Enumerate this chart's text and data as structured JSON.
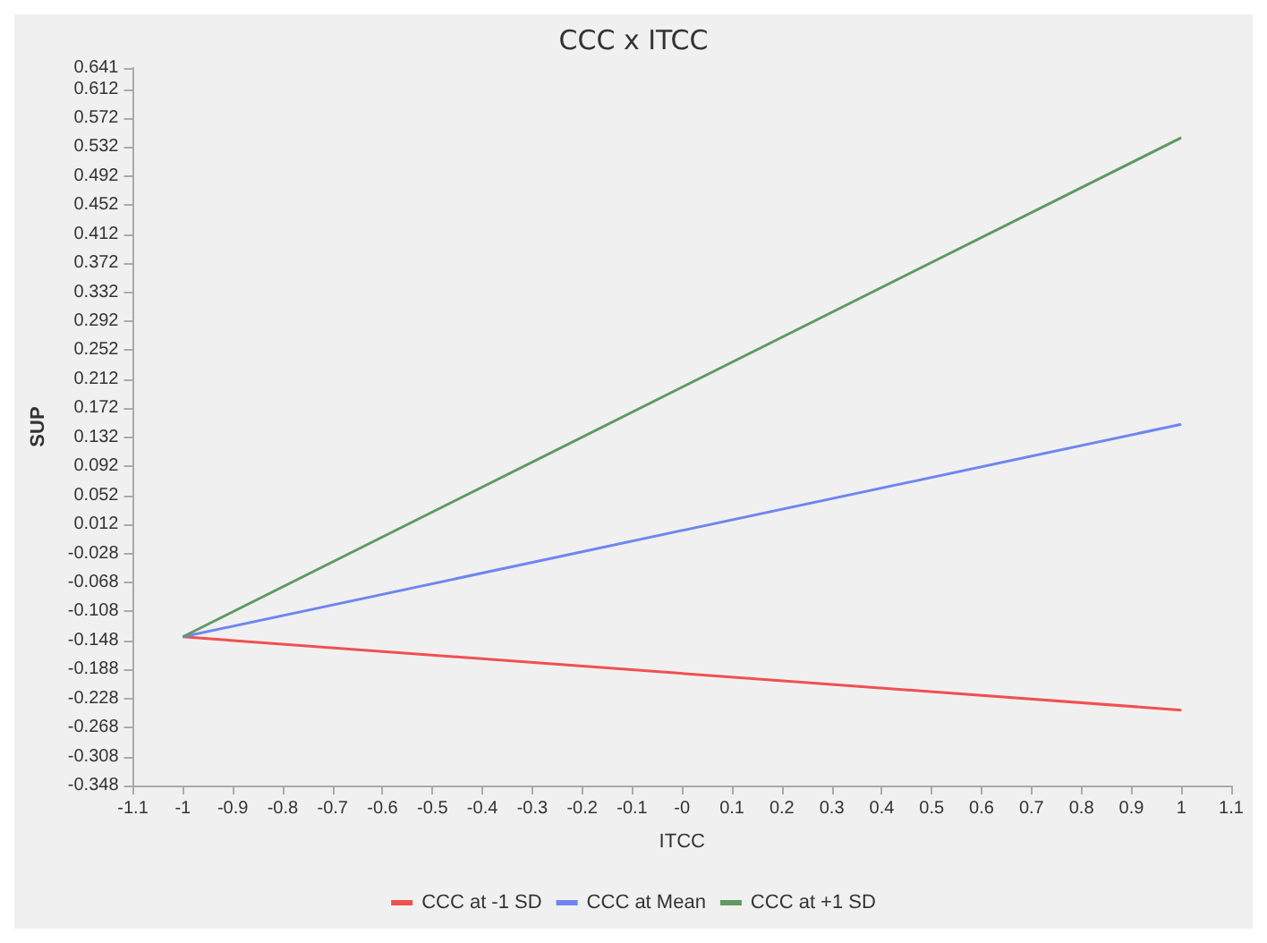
{
  "chart_data": {
    "type": "line",
    "title": "CCC x ITCC",
    "xlabel": "ITCC",
    "ylabel": "SUP",
    "x": [
      -1,
      1
    ],
    "series": [
      {
        "name": "CCC at -1 SD",
        "color": "#f05050",
        "values": [
          -0.143,
          -0.244
        ]
      },
      {
        "name": "CCC at Mean",
        "color": "#6f86f0",
        "values": [
          -0.143,
          0.15
        ]
      },
      {
        "name": "CCC at +1 SD",
        "color": "#5f9a5f",
        "values": [
          -0.143,
          0.545
        ]
      }
    ],
    "xlim": [
      -1.1,
      1.1
    ],
    "xticks": [
      -1.1,
      -1,
      -0.9,
      -0.8,
      -0.7,
      -0.6,
      -0.5,
      -0.4,
      -0.3,
      -0.2,
      -0.1,
      {
        "value": 0,
        "label": "-0"
      },
      0.1,
      0.2,
      0.3,
      0.4,
      0.5,
      0.6,
      0.7,
      0.8,
      0.9,
      1,
      1.1
    ],
    "ylim": [
      -0.348,
      0.641
    ],
    "yticks": [
      -0.348,
      -0.308,
      -0.268,
      -0.228,
      -0.188,
      -0.148,
      -0.108,
      -0.068,
      -0.028,
      0.012,
      0.052,
      0.092,
      0.132,
      0.172,
      0.212,
      0.252,
      0.292,
      0.332,
      0.372,
      0.412,
      0.452,
      0.492,
      0.532,
      0.572,
      0.612,
      0.641
    ],
    "grid": false,
    "legend": "bottom",
    "marker": "none",
    "line_style": "solid"
  }
}
